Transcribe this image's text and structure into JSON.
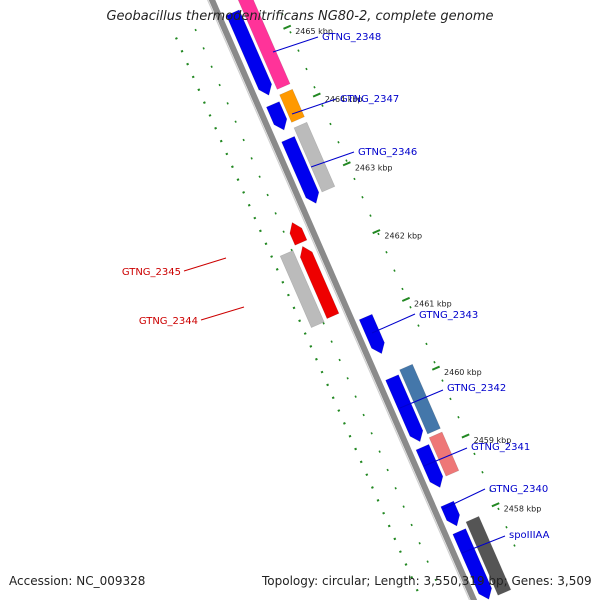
{
  "title": "Geobacillus thermodenitrificans NG80-2, complete genome",
  "footer": {
    "accession": "Accession: NC_009328",
    "summary": "Topology: circular; Length: 3,550,319 bp; Genes: 3,509"
  },
  "colors": {
    "backbone": "#8a8a8a",
    "forward_label": "#0000cc",
    "reverse_label": "#cc0000",
    "gc_dots": "#228822",
    "tick": "#228822"
  },
  "kbp_ticks": [
    "2465 kbp",
    "2464 kbp",
    "2463 kbp",
    "2462 kbp",
    "2461 kbp",
    "2460 kbp",
    "2459 kbp",
    "2458 kbp"
  ],
  "gene_labels": [
    {
      "text": "GTNG_2348",
      "strand": "forward"
    },
    {
      "text": "GTNG_2347",
      "strand": "forward"
    },
    {
      "text": "GTNG_2346",
      "strand": "forward"
    },
    {
      "text": "GTNG_2345",
      "strand": "reverse"
    },
    {
      "text": "GTNG_2344",
      "strand": "reverse"
    },
    {
      "text": "GTNG_2343",
      "strand": "forward"
    },
    {
      "text": "GTNG_2342",
      "strand": "forward"
    },
    {
      "text": "GTNG_2341",
      "strand": "forward"
    },
    {
      "text": "GTNG_2340",
      "strand": "forward"
    },
    {
      "text": "spoIIIAA",
      "strand": "forward"
    }
  ],
  "features": [
    {
      "strand": "forward",
      "ring": "cds",
      "color": "#0000ee",
      "gene": "GTNG_2348"
    },
    {
      "strand": "forward",
      "ring": "cog",
      "color": "#ff3399",
      "gene": "GTNG_2348"
    },
    {
      "strand": "forward",
      "ring": "cds",
      "color": "#0000ee",
      "gene": "GTNG_2347"
    },
    {
      "strand": "forward",
      "ring": "cog",
      "color": "#ff9900",
      "gene": "GTNG_2347"
    },
    {
      "strand": "forward",
      "ring": "cds",
      "color": "#0000ee",
      "gene": "GTNG_2346"
    },
    {
      "strand": "forward",
      "ring": "cog",
      "color": "#bbbbbb",
      "gene": "GTNG_2346"
    },
    {
      "strand": "reverse",
      "ring": "cds",
      "color": "#ee0000",
      "gene": "GTNG_2345"
    },
    {
      "strand": "reverse",
      "ring": "cds",
      "color": "#ee0000",
      "gene": "GTNG_2344"
    },
    {
      "strand": "reverse",
      "ring": "cog",
      "color": "#bbbbbb",
      "gene": "GTNG_2344"
    },
    {
      "strand": "forward",
      "ring": "cds",
      "color": "#0000ee",
      "gene": "GTNG_2343"
    },
    {
      "strand": "forward",
      "ring": "cds",
      "color": "#0000ee",
      "gene": "GTNG_2342"
    },
    {
      "strand": "forward",
      "ring": "cog",
      "color": "#4477aa",
      "gene": "GTNG_2342"
    },
    {
      "strand": "forward",
      "ring": "cds",
      "color": "#0000ee",
      "gene": "GTNG_2341"
    },
    {
      "strand": "forward",
      "ring": "cog",
      "color": "#ee7777",
      "gene": "GTNG_2341"
    },
    {
      "strand": "forward",
      "ring": "cds",
      "color": "#0000ee",
      "gene": "GTNG_2340"
    },
    {
      "strand": "forward",
      "ring": "cds",
      "color": "#0000ee",
      "gene": "spoIIIAA"
    },
    {
      "strand": "forward",
      "ring": "cog",
      "color": "#555555",
      "gene": "spoIIIAA"
    }
  ]
}
